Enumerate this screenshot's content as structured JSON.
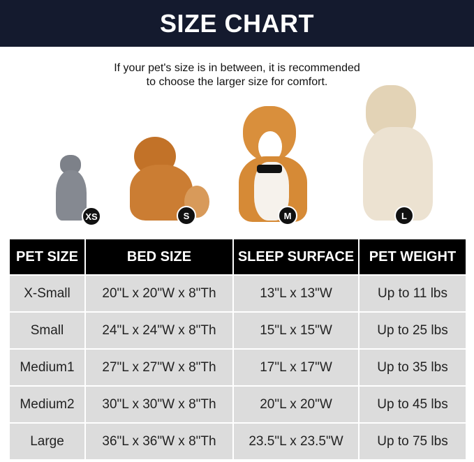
{
  "header": {
    "title": "SIZE CHART"
  },
  "note": {
    "line1": "If your pet's size is in between, it is recommended",
    "line2": "to choose the larger size for comfort."
  },
  "pets": [
    {
      "animal": "gray cat",
      "badge": "XS",
      "color": "#7d8189"
    },
    {
      "animal": "pomeranian",
      "badge": "S",
      "color": "#c97a2c"
    },
    {
      "animal": "corgi",
      "badge": "M",
      "color": "#d9923f"
    },
    {
      "animal": "golden retriever",
      "badge": "L",
      "color": "#e6d9c2"
    }
  ],
  "table": {
    "headers": [
      "PET SIZE",
      "BED SIZE",
      "SLEEP SURFACE",
      "PET WEIGHT"
    ],
    "rows": [
      [
        "X-Small",
        "20\"L x 20\"W x 8\"Th",
        "13\"L x 13\"W",
        "Up to 11 lbs"
      ],
      [
        "Small",
        "24\"L x 24\"W x 8\"Th",
        "15\"L x 15\"W",
        "Up to 25 lbs"
      ],
      [
        "Medium1",
        "27\"L x 27\"W x 8\"Th",
        "17\"L x 17\"W",
        "Up to 35 lbs"
      ],
      [
        "Medium2",
        "30\"L x 30\"W x 8\"Th",
        "20\"L x 20\"W",
        "Up to 45 lbs"
      ],
      [
        "Large",
        "36\"L x 36\"W x 8\"Th",
        "23.5\"L x 23.5\"W",
        "Up to 75 lbs"
      ]
    ]
  }
}
